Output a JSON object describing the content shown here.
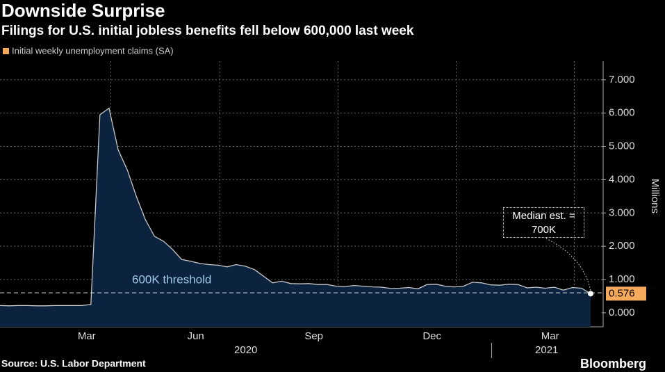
{
  "chart_data": {
    "type": "area",
    "title": "Downside Surprise",
    "subtitle": "Filings for U.S. initial jobless benefits fell below 600,000 last week",
    "y_label": "Millions",
    "source": "Source: U.S. Labor Department",
    "brand": "Bloomberg",
    "categories": [
      null,
      null,
      null,
      null,
      null,
      null,
      null,
      null,
      null,
      null,
      "Mar",
      null,
      null,
      null,
      null,
      null,
      null,
      null,
      null,
      null,
      null,
      null,
      "Jun",
      null,
      null,
      null,
      null,
      null,
      null,
      null,
      null,
      null,
      null,
      null,
      null,
      "Sep",
      null,
      null,
      null,
      null,
      null,
      null,
      null,
      null,
      null,
      null,
      null,
      null,
      "Dec",
      null,
      null,
      null,
      null,
      null,
      null,
      null,
      null,
      null,
      null,
      null,
      null,
      "Mar",
      null,
      null,
      null,
      null
    ],
    "years": [
      "2020",
      "2021"
    ],
    "series": [
      {
        "name": "Initial weekly unemployment claims (SA)",
        "color": "#f5a95b",
        "line_color": "#c8c8c8",
        "fill_color": "#0c2340",
        "values": [
          0.22,
          0.21,
          0.22,
          0.22,
          0.21,
          0.21,
          0.22,
          0.22,
          0.22,
          0.22,
          0.25,
          5.95,
          6.15,
          4.9,
          4.3,
          3.5,
          2.8,
          2.3,
          2.15,
          1.9,
          1.6,
          1.55,
          1.48,
          1.45,
          1.43,
          1.38,
          1.45,
          1.4,
          1.3,
          1.1,
          0.9,
          0.95,
          0.88,
          0.87,
          0.88,
          0.85,
          0.85,
          0.8,
          0.79,
          0.82,
          0.8,
          0.78,
          0.77,
          0.73,
          0.74,
          0.76,
          0.72,
          0.85,
          0.86,
          0.8,
          0.78,
          0.8,
          0.92,
          0.9,
          0.84,
          0.83,
          0.86,
          0.85,
          0.75,
          0.77,
          0.74,
          0.77,
          0.68,
          0.76,
          0.74,
          0.576
        ]
      }
    ],
    "ylim": [
      -0.42,
      7.56
    ],
    "yticks": [
      {
        "value": 0,
        "label": "0.000"
      },
      {
        "value": 1,
        "label": "1.000"
      },
      {
        "value": 2,
        "label": "2.000"
      },
      {
        "value": 3,
        "label": "3.000"
      },
      {
        "value": 4,
        "label": "4.000"
      },
      {
        "value": 5,
        "label": "5.000"
      },
      {
        "value": 6,
        "label": "6.000"
      },
      {
        "value": 7,
        "label": "7.000"
      }
    ],
    "reference_line": {
      "value": 0.6,
      "label": "600K threshold",
      "color": "#9fc7e8"
    },
    "annotation": "Median est. = 700K",
    "grid": true
  }
}
